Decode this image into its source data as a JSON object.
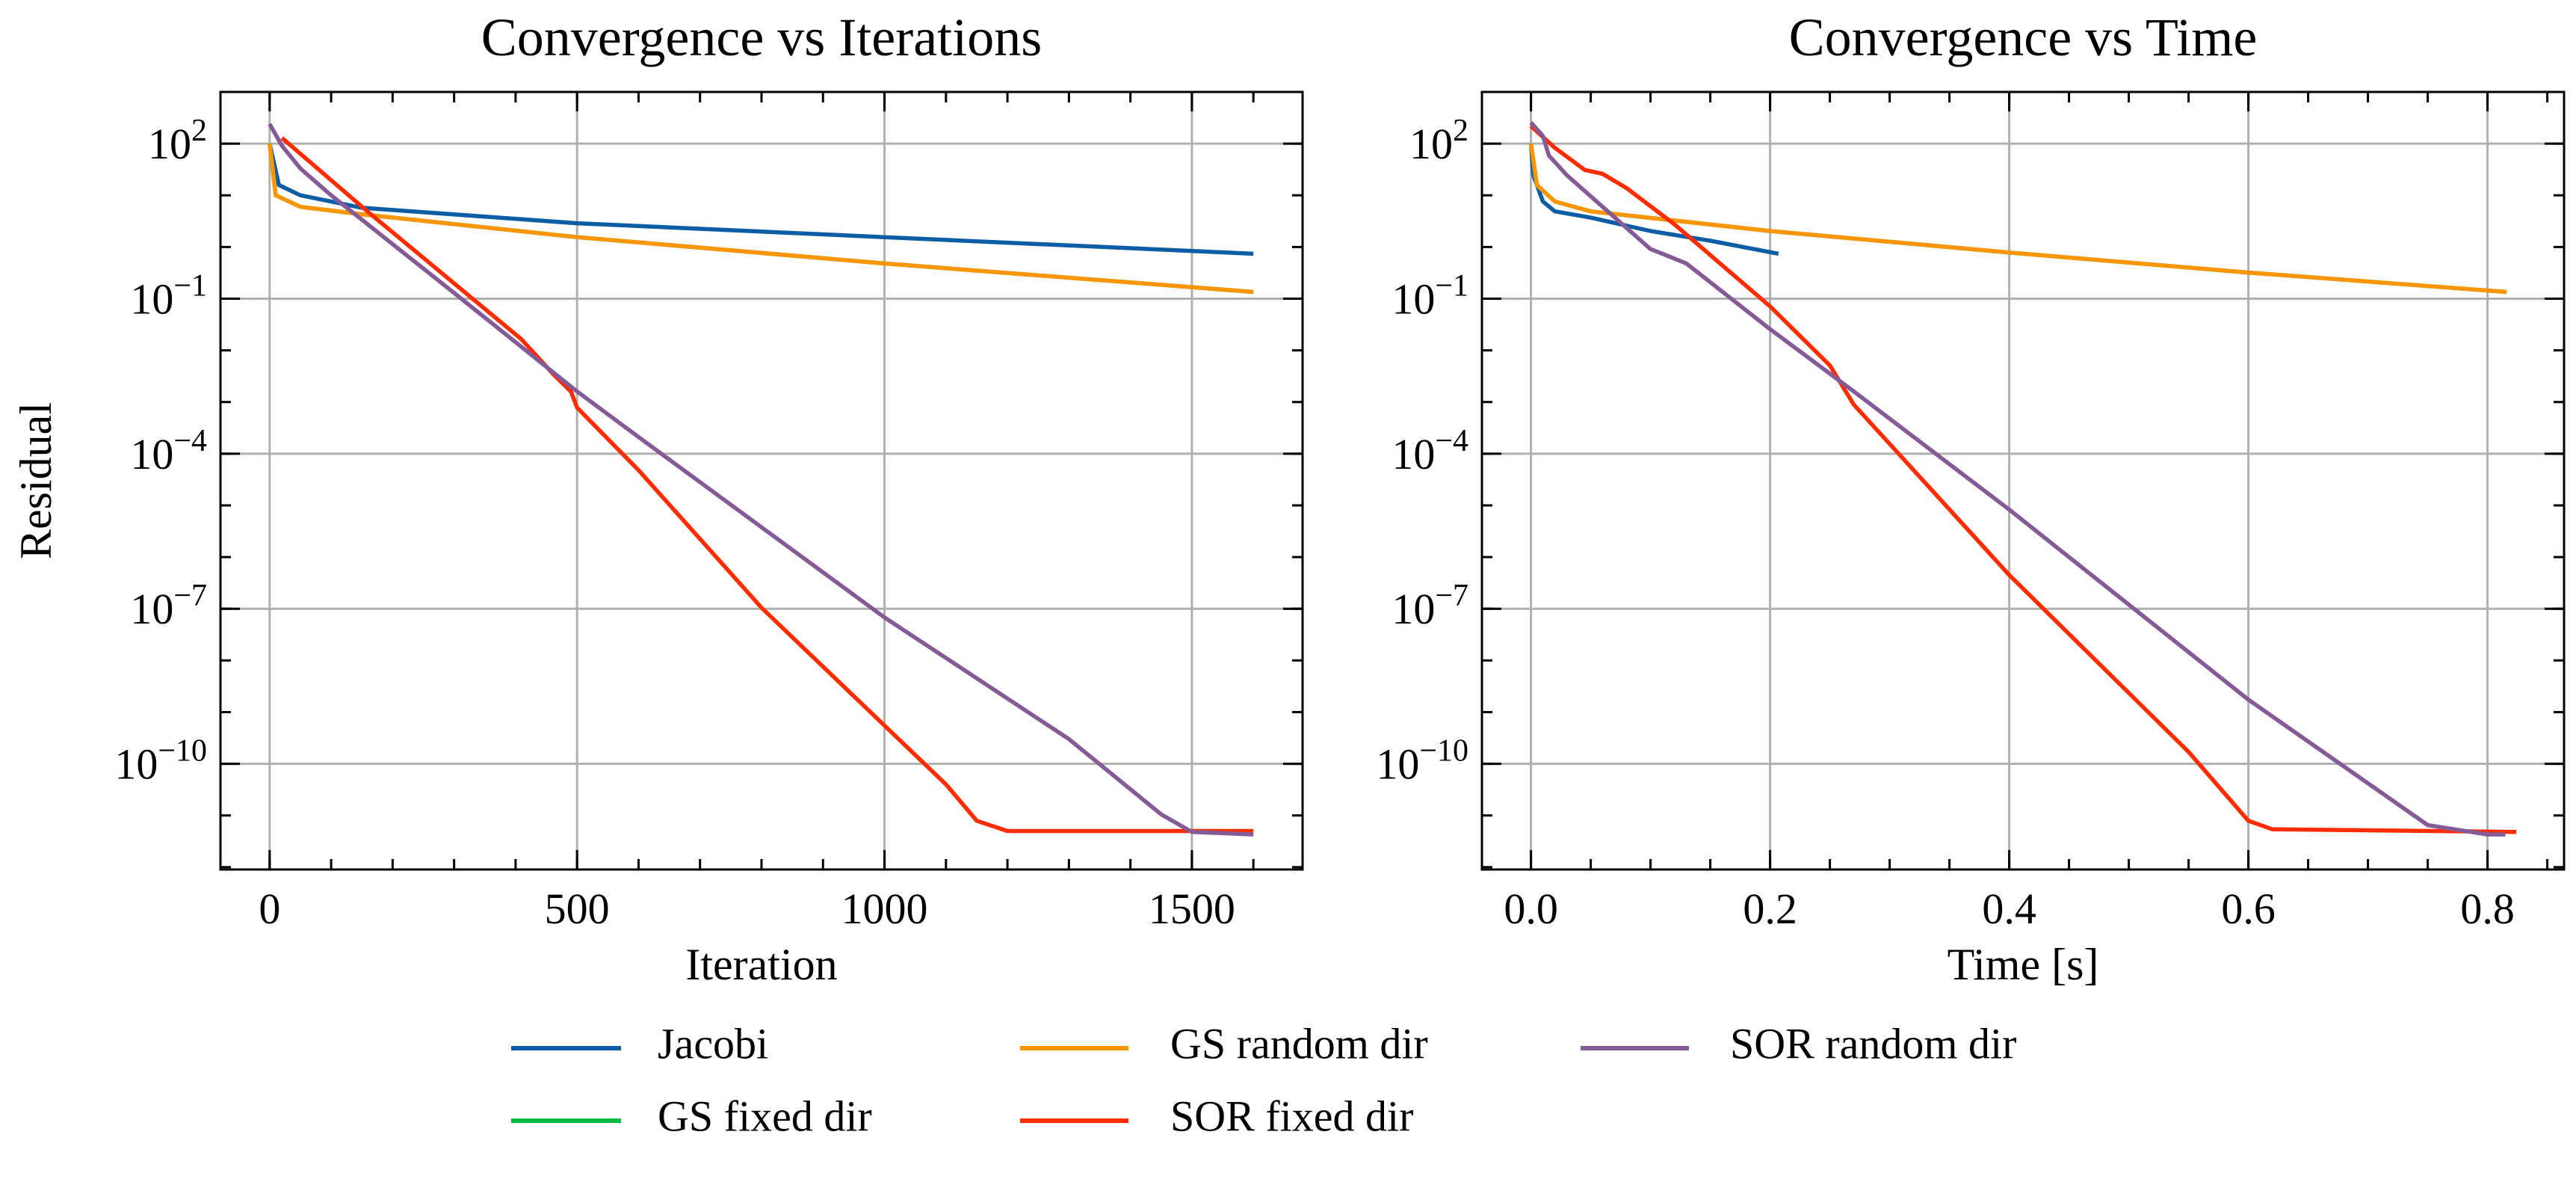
{
  "chart_data": [
    {
      "type": "line",
      "title": "Convergence vs Iterations",
      "xlabel": "Iteration",
      "ylabel": "Residual",
      "xlim": [
        -80,
        1680
      ],
      "ylim": [
        9e-13,
        1000
      ],
      "yscale": "log",
      "grid": true,
      "x_ticks": [
        {
          "value": 0,
          "label": "0"
        },
        {
          "value": 500,
          "label": "500"
        },
        {
          "value": 1000,
          "label": "1000"
        },
        {
          "value": 1500,
          "label": "1500"
        }
      ],
      "x_minor_step": 100,
      "y_ticks": [
        {
          "value": 100,
          "base": "10",
          "exp": "2"
        },
        {
          "value": 0.1,
          "base": "10",
          "exp": "−1"
        },
        {
          "value": 0.0001,
          "base": "10",
          "exp": "−4"
        },
        {
          "value": 1e-07,
          "base": "10",
          "exp": "−7"
        },
        {
          "value": 1e-10,
          "base": "10",
          "exp": "−10"
        }
      ],
      "series": [
        {
          "name": "Jacobi",
          "color": "#0C5DA5",
          "x": [
            0,
            15,
            50,
            150,
            500,
            1000,
            1600
          ],
          "y": [
            100,
            15.8,
            10,
            5.75,
            2.88,
            1.55,
            0.74
          ]
        },
        {
          "name": "GS fixed dir",
          "color": "#00B945",
          "x": [
            0,
            10,
            50,
            150,
            500,
            1000,
            1600
          ],
          "y": [
            100,
            10,
            6.0,
            4.3,
            1.55,
            0.48,
            0.135
          ]
        },
        {
          "name": "GS random dir",
          "color": "#FF9500",
          "x": [
            0,
            10,
            50,
            150,
            500,
            1000,
            1600
          ],
          "y": [
            100,
            10,
            6.0,
            4.3,
            1.55,
            0.48,
            0.135
          ]
        },
        {
          "name": "SOR fixed dir",
          "color": "#FF2C00",
          "x": [
            20,
            159,
            409,
            463,
            490,
            500,
            600,
            800,
            1000,
            1100,
            1150,
            1200,
            1600
          ],
          "y": [
            129,
            4.9,
            0.0166,
            0.0033,
            0.0016,
            0.00078,
            4.8e-05,
            1.05e-07,
            5.5e-10,
            4e-11,
            7.9e-12,
            5e-12,
            5e-12
          ]
        },
        {
          "name": "SOR random dir",
          "color": "#845B97",
          "x": [
            0,
            20,
            50,
            100,
            300,
            500,
            600,
            1000,
            1300,
            1450,
            1500,
            1600
          ],
          "y": [
            240,
            91,
            33,
            10,
            0.129,
            0.0016,
            0.00021,
            6.8e-08,
            3e-10,
            1.05e-11,
            4.8e-12,
            4.3e-12
          ]
        }
      ]
    },
    {
      "type": "line",
      "title": "Convergence vs Time",
      "xlabel": "Time [s]",
      "ylabel": "",
      "xlim": [
        -0.041,
        0.864
      ],
      "ylim": [
        9e-13,
        1000
      ],
      "yscale": "log",
      "grid": true,
      "x_ticks": [
        {
          "value": 0,
          "label": "0.0"
        },
        {
          "value": 0.2,
          "label": "0.2"
        },
        {
          "value": 0.4,
          "label": "0.4"
        },
        {
          "value": 0.6,
          "label": "0.6"
        },
        {
          "value": 0.8,
          "label": "0.8"
        }
      ],
      "x_minor_step": 0.05,
      "y_ticks": [
        {
          "value": 100,
          "base": "10",
          "exp": "2"
        },
        {
          "value": 0.1,
          "base": "10",
          "exp": "−1"
        },
        {
          "value": 0.0001,
          "base": "10",
          "exp": "−4"
        },
        {
          "value": 1e-07,
          "base": "10",
          "exp": "−7"
        },
        {
          "value": 1e-10,
          "base": "10",
          "exp": "−10"
        }
      ],
      "series": [
        {
          "name": "Jacobi",
          "color": "#0C5DA5",
          "x": [
            0,
            0.002,
            0.01,
            0.02,
            0.05,
            0.1,
            0.15,
            0.207
          ],
          "y": [
            100,
            24.5,
            7.6,
            4.9,
            3.7,
            2.04,
            1.32,
            0.74
          ]
        },
        {
          "name": "GS fixed dir",
          "color": "#00B945",
          "x": [
            0,
            0.005,
            0.02,
            0.05,
            0.2,
            0.4,
            0.6,
            0.816
          ],
          "y": [
            100,
            15.8,
            7.6,
            4.9,
            2.04,
            0.78,
            0.32,
            0.135
          ]
        },
        {
          "name": "GS random dir",
          "color": "#FF9500",
          "x": [
            0,
            0.005,
            0.02,
            0.05,
            0.2,
            0.4,
            0.6,
            0.816
          ],
          "y": [
            100,
            15.8,
            7.6,
            4.9,
            2.04,
            0.78,
            0.32,
            0.135
          ]
        },
        {
          "name": "SOR fixed dir",
          "color": "#FF2C00",
          "x": [
            0,
            0.02,
            0.045,
            0.06,
            0.08,
            0.12,
            0.2,
            0.25,
            0.27,
            0.3,
            0.4,
            0.55,
            0.6,
            0.62,
            0.824
          ],
          "y": [
            219,
            83,
            31,
            26,
            13.8,
            2.75,
            0.071,
            0.0051,
            0.00089,
            0.000155,
            4.5e-07,
            1.7e-10,
            7.9e-12,
            5.4e-12,
            4.8e-12
          ]
        },
        {
          "name": "SOR random dir",
          "color": "#845B97",
          "x": [
            0,
            0.01,
            0.015,
            0.03,
            0.1,
            0.11,
            0.13,
            0.2,
            0.27,
            0.4,
            0.6,
            0.75,
            0.8,
            0.815
          ],
          "y": [
            257,
            141,
            59,
            24.5,
            0.91,
            0.74,
            0.48,
            0.0257,
            0.0016,
            8.3e-06,
            1.74e-09,
            6.5e-12,
            4.3e-12,
            4.3e-12
          ]
        }
      ]
    }
  ],
  "legend": {
    "placement": "bottom-center",
    "entries": [
      {
        "label": "Jacobi",
        "color": "#0C5DA5"
      },
      {
        "label": "GS fixed dir",
        "color": "#00B945"
      },
      {
        "label": "GS random dir",
        "color": "#FF9500"
      },
      {
        "label": "SOR fixed dir",
        "color": "#FF2C00"
      },
      {
        "label": "SOR random dir",
        "color": "#845B97"
      }
    ]
  }
}
